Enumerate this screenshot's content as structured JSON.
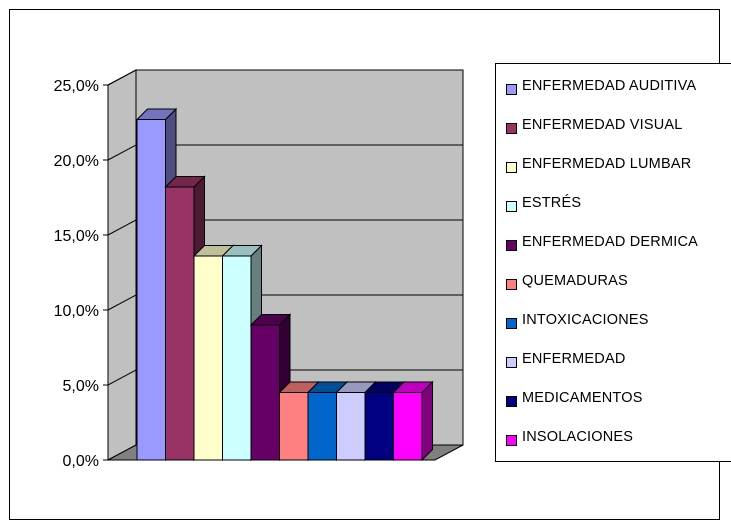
{
  "chart_data": {
    "type": "bar",
    "variant": "3d-clustered",
    "categories": [
      "ENFERMEDAD AUDITIVA",
      "ENFERMEDAD VISUAL",
      "ENFERMEDAD LUMBAR",
      "ESTRÉS",
      "ENFERMEDAD DERMICA",
      "QUEMADURAS",
      "INTOXICACIONES",
      "ENFERMEDAD",
      "MEDICAMENTOS",
      "INSOLACIONES"
    ],
    "values": [
      22.7,
      18.2,
      13.6,
      13.6,
      9.0,
      4.5,
      4.5,
      4.5,
      4.5,
      4.5
    ],
    "colors": [
      "#9999ff",
      "#993366",
      "#ffffcc",
      "#ccffff",
      "#660066",
      "#ff8080",
      "#0066cc",
      "#ccccff",
      "#000080",
      "#ff00ff"
    ],
    "ylim": [
      0,
      25
    ],
    "yticks": [
      "0,0%",
      "5,0%",
      "10,0%",
      "15,0%",
      "20,0%",
      "25,0%"
    ],
    "grid": true,
    "legend_position": "right",
    "title": "",
    "xlabel": "",
    "ylabel": ""
  }
}
